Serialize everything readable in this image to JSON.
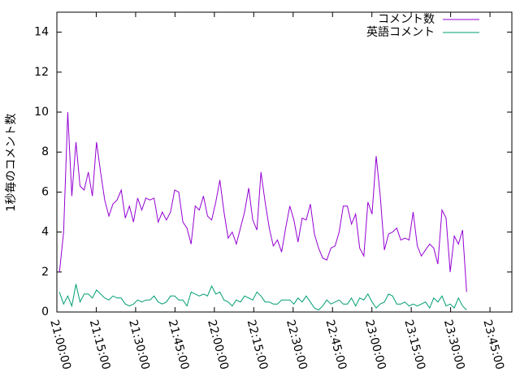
{
  "chart_data": {
    "type": "line",
    "ylabel": "1秒毎のコメント数",
    "x": [
      75660,
      75754,
      75848,
      75942,
      76036,
      76130,
      76224,
      76318,
      76412,
      76506,
      76600,
      76694,
      76788,
      76882,
      76976,
      77070,
      77164,
      77258,
      77352,
      77446,
      77540,
      77634,
      77728,
      77822,
      77916,
      78010,
      78104,
      78198,
      78292,
      78386,
      78480,
      78574,
      78668,
      78762,
      78856,
      78950,
      79044,
      79138,
      79232,
      79326,
      79420,
      79514,
      79608,
      79702,
      79796,
      79890,
      79984,
      80078,
      80172,
      80266,
      80360,
      80454,
      80548,
      80642,
      80736,
      80830,
      80924,
      81018,
      81112,
      81206,
      81300,
      81394,
      81488,
      81582,
      81676,
      81770,
      81864,
      81958,
      82052,
      82146,
      82240,
      82334,
      82428,
      82522,
      82616,
      82710,
      82804,
      82898,
      82992,
      83086,
      83180,
      83274,
      83368,
      83462,
      83556,
      83650,
      83744,
      83838,
      83932,
      84026,
      84120,
      84214,
      84308,
      84402,
      84496,
      84590,
      84684,
      84778,
      84872,
      84966
    ],
    "series": [
      {
        "name": "コメント数",
        "color": "#9400d3",
        "values": [
          2.0,
          4.0,
          10.0,
          5.8,
          8.5,
          6.3,
          6.1,
          7.0,
          5.8,
          8.5,
          7.0,
          5.6,
          4.8,
          5.4,
          5.6,
          6.1,
          4.7,
          5.3,
          4.5,
          5.7,
          5.1,
          5.7,
          5.6,
          5.7,
          4.5,
          5.0,
          4.6,
          5.0,
          6.1,
          6.0,
          4.5,
          4.2,
          3.4,
          5.3,
          5.1,
          5.8,
          4.8,
          4.6,
          5.5,
          6.6,
          5.0,
          3.7,
          4.0,
          3.4,
          4.2,
          5.0,
          6.2,
          4.6,
          4.1,
          7.0,
          5.5,
          4.2,
          3.3,
          3.6,
          3.0,
          4.2,
          5.3,
          4.6,
          3.5,
          4.7,
          4.6,
          5.4,
          3.9,
          3.2,
          2.7,
          2.6,
          3.2,
          3.3,
          4.0,
          5.3,
          5.3,
          4.4,
          4.9,
          3.2,
          2.8,
          5.5,
          4.9,
          7.8,
          5.8,
          3.1,
          3.9,
          4.0,
          4.2,
          3.6,
          3.7,
          3.6,
          5.0,
          3.3,
          2.8,
          3.1,
          3.4,
          3.2,
          2.4,
          5.1,
          4.7,
          2.0,
          3.8,
          3.4,
          4.1,
          1.0
        ]
      },
      {
        "name": "英語コメント",
        "color": "#009e73",
        "values": [
          1.0,
          0.4,
          0.8,
          0.3,
          1.4,
          0.5,
          0.9,
          0.9,
          0.7,
          1.1,
          0.9,
          0.7,
          0.6,
          0.8,
          0.7,
          0.7,
          0.4,
          0.3,
          0.4,
          0.6,
          0.5,
          0.6,
          0.6,
          0.8,
          0.5,
          0.4,
          0.5,
          0.8,
          0.8,
          0.6,
          0.6,
          0.3,
          1.0,
          0.9,
          0.8,
          0.9,
          0.8,
          1.3,
          0.9,
          1.0,
          0.6,
          0.5,
          0.3,
          0.6,
          0.5,
          0.8,
          0.7,
          0.6,
          1.0,
          0.8,
          0.5,
          0.5,
          0.4,
          0.4,
          0.6,
          0.6,
          0.6,
          0.4,
          0.7,
          0.5,
          0.8,
          0.5,
          0.2,
          0.1,
          0.3,
          0.6,
          0.4,
          0.5,
          0.6,
          0.4,
          0.4,
          0.7,
          0.3,
          0.7,
          0.6,
          0.9,
          0.5,
          0.2,
          0.4,
          0.5,
          0.9,
          0.8,
          0.4,
          0.4,
          0.5,
          0.3,
          0.4,
          0.3,
          0.4,
          0.5,
          0.2,
          0.7,
          0.5,
          0.8,
          0.3,
          0.4,
          0.2,
          0.7,
          0.3,
          0.1
        ]
      }
    ],
    "xlim": [
      75600,
      86000
    ],
    "xticks": [
      {
        "value": 75600,
        "label": "21:00:00"
      },
      {
        "value": 76500,
        "label": "21:15:00"
      },
      {
        "value": 77400,
        "label": "21:30:00"
      },
      {
        "value": 78300,
        "label": "21:45:00"
      },
      {
        "value": 79200,
        "label": "22:00:00"
      },
      {
        "value": 80100,
        "label": "22:15:00"
      },
      {
        "value": 81000,
        "label": "22:30:00"
      },
      {
        "value": 81900,
        "label": "22:45:00"
      },
      {
        "value": 82800,
        "label": "23:00:00"
      },
      {
        "value": 83700,
        "label": "23:15:00"
      },
      {
        "value": 84600,
        "label": "23:30:00"
      },
      {
        "value": 85500,
        "label": "23:45:00"
      }
    ],
    "ylim": [
      0,
      15
    ],
    "yticks": [
      0,
      2,
      4,
      6,
      8,
      10,
      12,
      14
    ],
    "legend": "top-right"
  }
}
